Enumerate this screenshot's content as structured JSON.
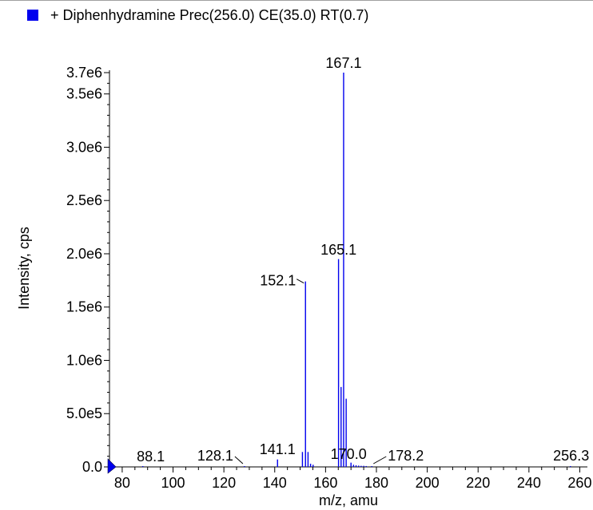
{
  "legend": {
    "series_label": "+ Diphenhydramine Prec(256.0) CE(35.0) RT(0.7)",
    "swatch_color": "#0000ee"
  },
  "chart_data": {
    "type": "bar",
    "title": "",
    "xlabel": "m/z, amu",
    "ylabel": "Intensity, cps",
    "xlim": [
      75,
      263
    ],
    "ylim": [
      0,
      3700000
    ],
    "x_ticks": [
      "80",
      "100",
      "120",
      "140",
      "160",
      "180",
      "200",
      "220",
      "240",
      "260"
    ],
    "y_ticks": [
      "0.0",
      "5.0e5",
      "1.0e6",
      "1.5e6",
      "2.0e6",
      "2.5e6",
      "3.0e6",
      "3.5e6",
      "3.7e6"
    ],
    "series": [
      {
        "name": "+ Diphenhydramine Prec(256.0) CE(35.0) RT(0.7)",
        "color": "#0000ee",
        "points": [
          {
            "x": 88.1,
            "y": 3000
          },
          {
            "x": 128.1,
            "y": 4000
          },
          {
            "x": 141.1,
            "y": 70000
          },
          {
            "x": 150.9,
            "y": 140000
          },
          {
            "x": 152.1,
            "y": 1740000
          },
          {
            "x": 153.1,
            "y": 140000
          },
          {
            "x": 154.1,
            "y": 30000
          },
          {
            "x": 155.1,
            "y": 20000
          },
          {
            "x": 165.1,
            "y": 1950000
          },
          {
            "x": 166.1,
            "y": 750000
          },
          {
            "x": 167.1,
            "y": 3700000
          },
          {
            "x": 168.1,
            "y": 640000
          },
          {
            "x": 170.0,
            "y": 40000
          },
          {
            "x": 171.0,
            "y": 20000
          },
          {
            "x": 172.0,
            "y": 15000
          },
          {
            "x": 173.0,
            "y": 12000
          },
          {
            "x": 174.0,
            "y": 10000
          },
          {
            "x": 175.0,
            "y": 10000
          },
          {
            "x": 176.0,
            "y": 8000
          },
          {
            "x": 178.2,
            "y": 6000
          },
          {
            "x": 256.3,
            "y": 3000
          }
        ]
      }
    ],
    "peak_labels": [
      {
        "text": "88.1",
        "x": 88.1,
        "y": 3000,
        "anchor": "above"
      },
      {
        "text": "128.1",
        "x": 128.1,
        "y": 4000,
        "anchor": "left-leader"
      },
      {
        "text": "141.1",
        "x": 141.1,
        "y": 70000,
        "anchor": "above"
      },
      {
        "text": "152.1",
        "x": 152.1,
        "y": 1740000,
        "anchor": "left-leader"
      },
      {
        "text": "165.1",
        "x": 165.1,
        "y": 1950000,
        "anchor": "above"
      },
      {
        "text": "167.1",
        "x": 167.1,
        "y": 3700000,
        "anchor": "above"
      },
      {
        "text": "170.0",
        "x": 170.0,
        "y": 40000,
        "anchor": "above"
      },
      {
        "text": "178.2",
        "x": 178.2,
        "y": 6000,
        "anchor": "right-leader"
      },
      {
        "text": "256.3",
        "x": 256.3,
        "y": 3000,
        "anchor": "above"
      }
    ],
    "grid": false,
    "legend_position": "top-left"
  }
}
